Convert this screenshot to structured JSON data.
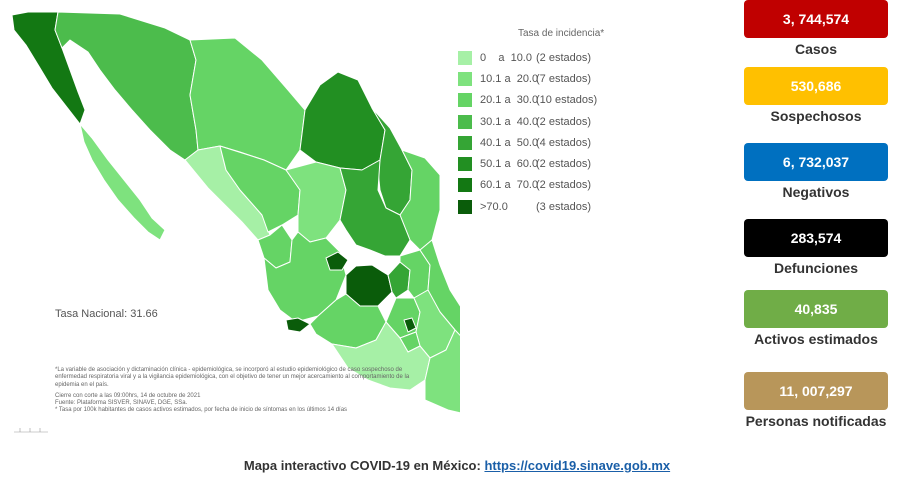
{
  "legend": {
    "title": "Tasa de incidencia*",
    "items": [
      {
        "range": "0    a  10.0",
        "count": "(2 estados)",
        "color": "#a6f0a6"
      },
      {
        "range": "10.1 a  20.0",
        "count": "(7 estados)",
        "color": "#7ee27e"
      },
      {
        "range": "20.1 a  30.0",
        "count": "(10 estados)",
        "color": "#65d465"
      },
      {
        "range": "30.1 a  40.0",
        "count": "(2 estados)",
        "color": "#4cbc4c"
      },
      {
        "range": "40.1 a  50.0",
        "count": "(4 estados)",
        "color": "#35a535"
      },
      {
        "range": "50.1 a  60.0",
        "count": "(2 estados)",
        "color": "#228f22"
      },
      {
        "range": "60.1 a  70.0",
        "count": "(2 estados)",
        "color": "#137813"
      },
      {
        "range": ">70.0",
        "count": "(3 estados)",
        "color": "#0a5c0a"
      }
    ]
  },
  "tasa_nacional": "Tasa Nacional: 31.66",
  "notes": [
    "*La variable de asociación y dictaminación clínica - epidemiológica, se incorporó al estudio epidemiológico de caso sospechoso de enfermedad respiratoria viral y a la vigilancia epidemiológica, con el objetivo de tener un mejor acercamiento al comportamiento de la epidemia en el país.",
    "Cierre con corte a las 09:00hrs, 14 de octubre de 2021\nFuente: Plataforma SISVER, SINAVE, DGE, SSa.\n* Tasa por 100k habitantes de casos activos estimados, por fecha de inicio de síntomas en los últimos 14 días"
  ],
  "stats": [
    {
      "value": "3, 744,574",
      "label": "Casos",
      "color": "#c00000"
    },
    {
      "value": "530,686",
      "label": "Sospechosos",
      "color": "#ffc000"
    },
    {
      "value": "6, 732,037",
      "label": "Negativos",
      "color": "#0070c0"
    },
    {
      "value": "283,574",
      "label": "Defunciones",
      "color": "#000000"
    },
    {
      "value": "40,835",
      "label": "Activos estimados",
      "color": "#70ad47"
    },
    {
      "value": "11, 007,297",
      "label": "Personas notificadas",
      "color": "#b8965a"
    }
  ],
  "footer": {
    "text": "Mapa interactivo COVID-19 en México:",
    "link": "https://covid19.sinave.gob.mx"
  },
  "map_colors": {
    "c1": "#a6f0a6",
    "c2": "#7ee27e",
    "c3": "#65d465",
    "c4": "#4cbc4c",
    "c5": "#35a535",
    "c6": "#228f22",
    "c7": "#137813",
    "c8": "#0a5c0a"
  }
}
